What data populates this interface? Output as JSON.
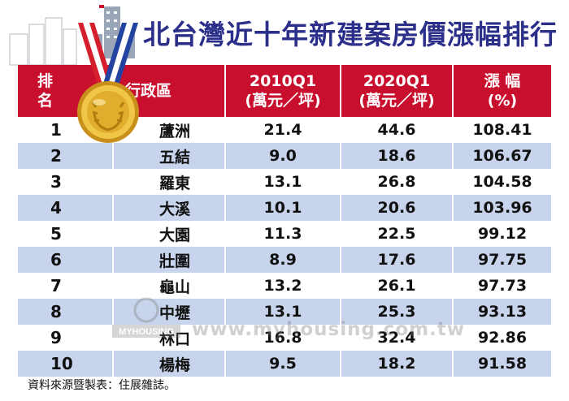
{
  "title": "北台灣近十年新建案房價漲幅排行",
  "chart_data": {
    "type": "table",
    "title": "北台灣近十年新建案房價漲幅排行",
    "columns": [
      {
        "name": "排 名"
      },
      {
        "name": "行政區"
      },
      {
        "line1": "2010Q1",
        "line2": "(萬元／坪)"
      },
      {
        "line1": "2020Q1",
        "line2": "(萬元／坪)"
      },
      {
        "line1": "漲 幅",
        "line2": "(%)"
      }
    ],
    "rows": [
      {
        "rank": "1",
        "region": "蘆洲",
        "v2010": "21.4",
        "v2020": "44.6",
        "growth": "108.41"
      },
      {
        "rank": "2",
        "region": "五結",
        "v2010": "9.0",
        "v2020": "18.6",
        "growth": "106.67"
      },
      {
        "rank": "3",
        "region": "羅東",
        "v2010": "13.1",
        "v2020": "26.8",
        "growth": "104.58"
      },
      {
        "rank": "4",
        "region": "大溪",
        "v2010": "10.1",
        "v2020": "20.6",
        "growth": "103.96"
      },
      {
        "rank": "5",
        "region": "大園",
        "v2010": "11.3",
        "v2020": "22.5",
        "growth": "99.12"
      },
      {
        "rank": "6",
        "region": "壯圍",
        "v2010": "8.9",
        "v2020": "17.6",
        "growth": "97.75"
      },
      {
        "rank": "7",
        "region": "龜山",
        "v2010": "13.2",
        "v2020": "26.1",
        "growth": "97.73"
      },
      {
        "rank": "8",
        "region": "中壢",
        "v2010": "13.1",
        "v2020": "25.3",
        "growth": "93.13"
      },
      {
        "rank": "9",
        "region": "林口",
        "v2010": "16.8",
        "v2020": "32.4",
        "growth": "92.86"
      },
      {
        "rank": "10",
        "region": "楊梅",
        "v2010": "9.5",
        "v2020": "18.2",
        "growth": "91.58"
      }
    ]
  },
  "watermark": "www.myhousing.com.tw",
  "watermark_logo": "MYHOUSING",
  "source": "資料來源暨製表：住展雜誌。",
  "colors": {
    "header": "#c8102e",
    "title": "#2b2f8a",
    "alt_row": "#c7d4ec",
    "medal": "#d4a017"
  },
  "icons": {
    "medal": "gold-medal-icon",
    "skyline": "building-skyline-icon"
  }
}
